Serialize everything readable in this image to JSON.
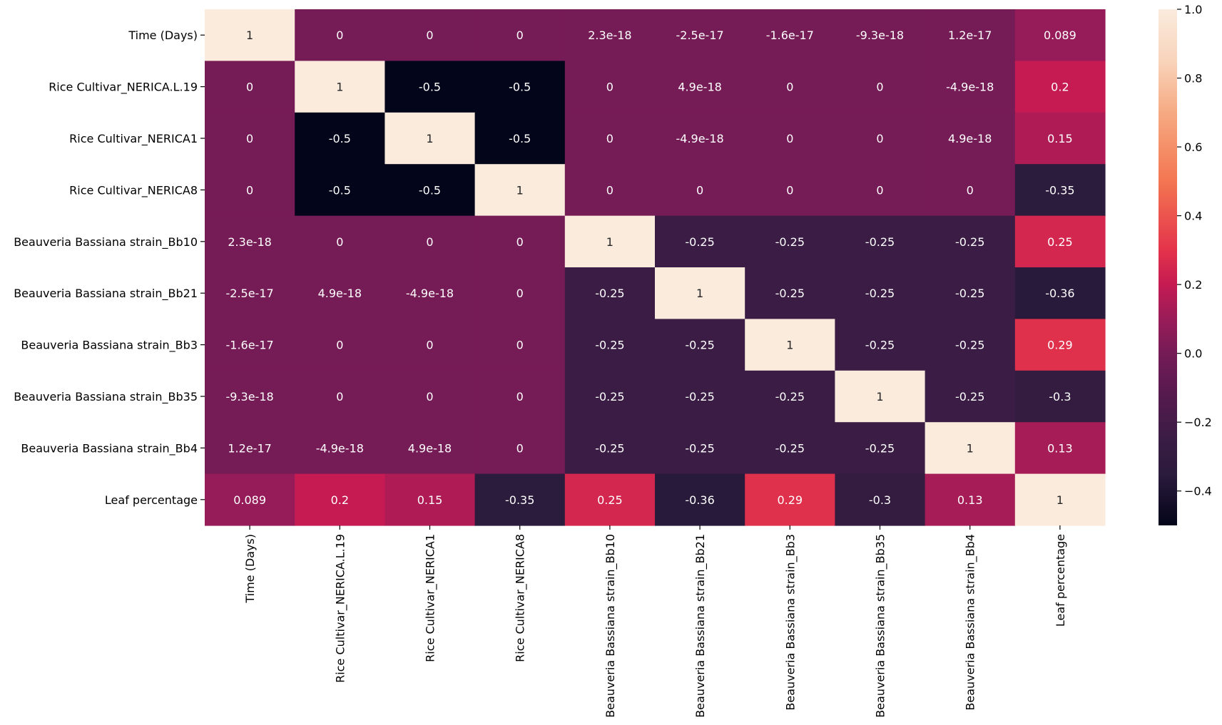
{
  "chart_data": {
    "type": "heatmap",
    "title": "",
    "xlabel": "",
    "ylabel": "",
    "rows": [
      "Time (Days)",
      "Rice Cultivar_NERICA.L.19",
      "Rice Cultivar_NERICA1",
      "Rice Cultivar_NERICA8",
      "Beauveria Bassiana strain_Bb10",
      "Beauveria Bassiana strain_Bb21",
      "Beauveria Bassiana strain_Bb3",
      "Beauveria Bassiana strain_Bb35",
      "Beauveria Bassiana strain_Bb4",
      "Leaf percentage"
    ],
    "columns": [
      "Time (Days)",
      "Rice Cultivar_NERICA.L.19",
      "Rice Cultivar_NERICA1",
      "Rice Cultivar_NERICA8",
      "Beauveria Bassiana strain_Bb10",
      "Beauveria Bassiana strain_Bb21",
      "Beauveria Bassiana strain_Bb3",
      "Beauveria Bassiana strain_Bb35",
      "Beauveria Bassiana strain_Bb4",
      "Leaf percentage"
    ],
    "values": [
      [
        1,
        0,
        0,
        0,
        2.3e-18,
        -2.5e-17,
        -1.6e-17,
        -9.3e-18,
        1.2e-17,
        0.089
      ],
      [
        0,
        1,
        -0.5,
        -0.5,
        0,
        4.9e-18,
        0,
        0,
        -4.9e-18,
        0.2
      ],
      [
        0,
        -0.5,
        1,
        -0.5,
        0,
        -4.9e-18,
        0,
        0,
        4.9e-18,
        0.15
      ],
      [
        0,
        -0.5,
        -0.5,
        1,
        0,
        0,
        0,
        0,
        0,
        -0.35
      ],
      [
        2.3e-18,
        0,
        0,
        0,
        1,
        -0.25,
        -0.25,
        -0.25,
        -0.25,
        0.25
      ],
      [
        -2.5e-17,
        4.9e-18,
        -4.9e-18,
        0,
        -0.25,
        1,
        -0.25,
        -0.25,
        -0.25,
        -0.36
      ],
      [
        -1.6e-17,
        0,
        0,
        0,
        -0.25,
        -0.25,
        1,
        -0.25,
        -0.25,
        0.29
      ],
      [
        -9.3e-18,
        0,
        0,
        0,
        -0.25,
        -0.25,
        -0.25,
        1,
        -0.25,
        -0.3
      ],
      [
        1.2e-17,
        -4.9e-18,
        4.9e-18,
        0,
        -0.25,
        -0.25,
        -0.25,
        -0.25,
        1,
        0.13
      ],
      [
        0.089,
        0.2,
        0.15,
        -0.35,
        0.25,
        -0.36,
        0.29,
        -0.3,
        0.13,
        1
      ]
    ],
    "annotations": [
      [
        "1",
        "0",
        "0",
        "0",
        "2.3e-18",
        "-2.5e-17",
        "-1.6e-17",
        "-9.3e-18",
        "1.2e-17",
        "0.089"
      ],
      [
        "0",
        "1",
        "-0.5",
        "-0.5",
        "0",
        "4.9e-18",
        "0",
        "0",
        "-4.9e-18",
        "0.2"
      ],
      [
        "0",
        "-0.5",
        "1",
        "-0.5",
        "0",
        "-4.9e-18",
        "0",
        "0",
        "4.9e-18",
        "0.15"
      ],
      [
        "0",
        "-0.5",
        "-0.5",
        "1",
        "0",
        "0",
        "0",
        "0",
        "0",
        "-0.35"
      ],
      [
        "2.3e-18",
        "0",
        "0",
        "0",
        "1",
        "-0.25",
        "-0.25",
        "-0.25",
        "-0.25",
        "0.25"
      ],
      [
        "-2.5e-17",
        "4.9e-18",
        "-4.9e-18",
        "0",
        "-0.25",
        "1",
        "-0.25",
        "-0.25",
        "-0.25",
        "-0.36"
      ],
      [
        "-1.6e-17",
        "0",
        "0",
        "0",
        "-0.25",
        "-0.25",
        "1",
        "-0.25",
        "-0.25",
        "0.29"
      ],
      [
        "-9.3e-18",
        "0",
        "0",
        "0",
        "-0.25",
        "-0.25",
        "-0.25",
        "1",
        "-0.25",
        "-0.3"
      ],
      [
        "1.2e-17",
        "-4.9e-18",
        "4.9e-18",
        "0",
        "-0.25",
        "-0.25",
        "-0.25",
        "-0.25",
        "1",
        "0.13"
      ],
      [
        "0.089",
        "0.2",
        "0.15",
        "-0.35",
        "0.25",
        "-0.36",
        "0.29",
        "-0.3",
        "0.13",
        "1"
      ]
    ],
    "colorbar": {
      "colormap": "rocket",
      "vmin": -0.5,
      "vmax": 1.0,
      "ticks": [
        -0.4,
        -0.2,
        0.0,
        0.2,
        0.4,
        0.6,
        0.8,
        1.0
      ],
      "tick_labels": [
        "−0.4",
        "−0.2",
        "0.0",
        "0.2",
        "0.4",
        "0.6",
        "0.8",
        "1.0"
      ]
    },
    "colormap_stops": [
      {
        "v": -0.5,
        "color": "#03051a"
      },
      {
        "v": -0.35,
        "color": "#2b1b3c"
      },
      {
        "v": -0.25,
        "color": "#3a1c44"
      },
      {
        "v": -0.1,
        "color": "#5a1a50"
      },
      {
        "v": 0.0,
        "color": "#751b56"
      },
      {
        "v": 0.1,
        "color": "#991c58"
      },
      {
        "v": 0.2,
        "color": "#c51b52"
      },
      {
        "v": 0.3,
        "color": "#e3334b"
      },
      {
        "v": 0.5,
        "color": "#f37651"
      },
      {
        "v": 0.7,
        "color": "#f6aa82"
      },
      {
        "v": 0.85,
        "color": "#f8d4bb"
      },
      {
        "v": 1.0,
        "color": "#faebdd"
      }
    ],
    "grid": false,
    "legend": "none"
  }
}
